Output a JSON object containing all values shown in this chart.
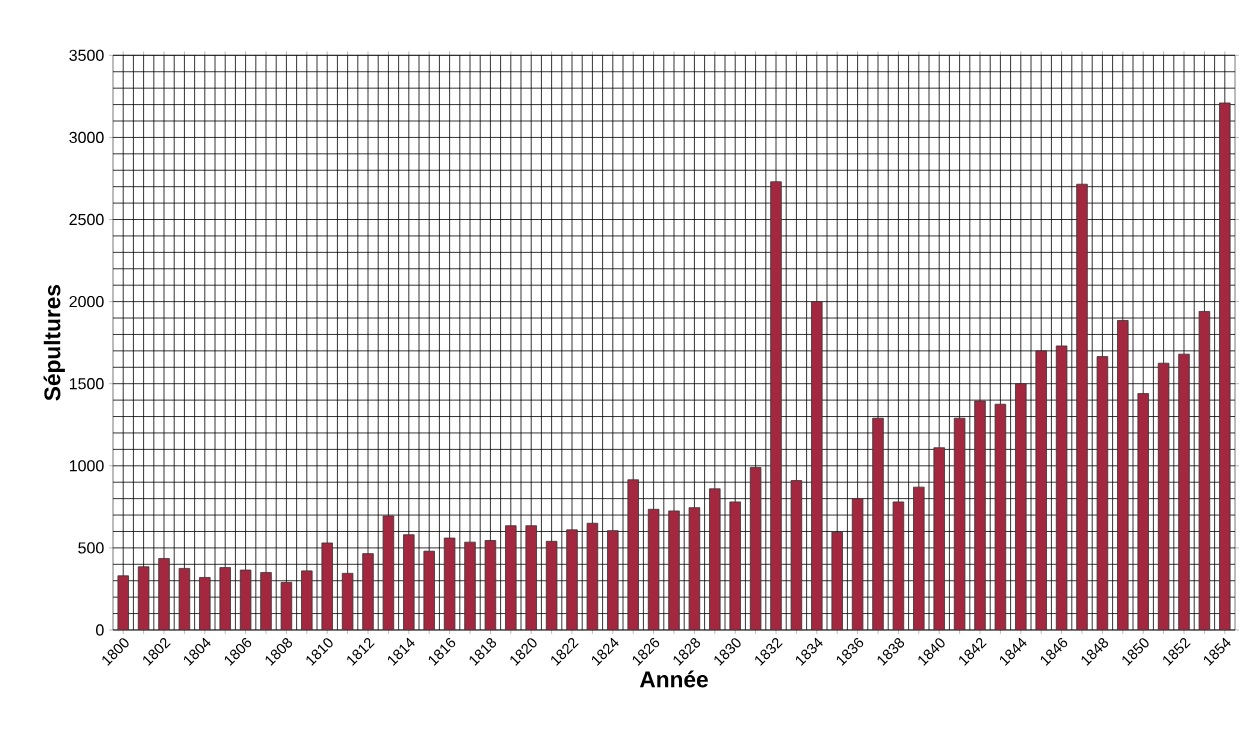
{
  "chart_data": {
    "type": "bar",
    "xlabel": "Année",
    "ylabel": "Sépultures",
    "categories": [
      "1800",
      null,
      "1802",
      null,
      "1804",
      null,
      "1806",
      null,
      "1808",
      null,
      "1810",
      null,
      "1812",
      null,
      "1814",
      null,
      "1816",
      null,
      "1818",
      null,
      "1820",
      null,
      "1822",
      null,
      "1824",
      null,
      "1826",
      null,
      "1828",
      null,
      "1830",
      null,
      "1832",
      null,
      "1834",
      null,
      "1836",
      null,
      "1838",
      null,
      "1840",
      null,
      "1842",
      null,
      "1844",
      null,
      "1846",
      null,
      "1848",
      null,
      "1850",
      null,
      "1852",
      null,
      "1854"
    ],
    "values": [
      330,
      385,
      435,
      375,
      320,
      380,
      365,
      350,
      290,
      360,
      530,
      345,
      465,
      695,
      580,
      480,
      560,
      535,
      545,
      635,
      635,
      540,
      610,
      650,
      605,
      915,
      735,
      725,
      745,
      860,
      780,
      990,
      2730,
      910,
      2000,
      595,
      800,
      1290,
      780,
      870,
      1110,
      1290,
      1395,
      1375,
      1500,
      1700,
      1730,
      2715,
      1665,
      1885,
      1440,
      1625,
      1680,
      1940,
      3210
    ],
    "color": "#a3283f",
    "ylim": [
      0,
      3500
    ],
    "yticks": [
      0,
      500,
      1000,
      1500,
      2000,
      2500,
      3000,
      3500
    ],
    "grid": true
  }
}
